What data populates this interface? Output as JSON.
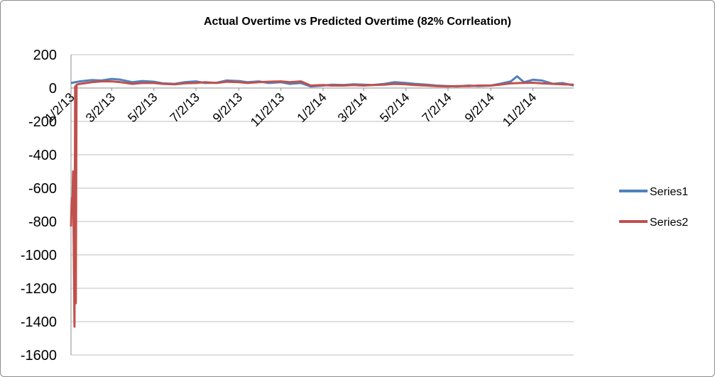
{
  "chart_data": {
    "type": "line",
    "title": "Actual Overtime vs Predicted Overtime (82% Corrleation)",
    "xlabel": "",
    "ylabel": "",
    "ylim": [
      -1600,
      200
    ],
    "yticks": [
      200,
      0,
      -200,
      -400,
      -600,
      -800,
      -1000,
      -1200,
      -1400,
      -1600
    ],
    "xtick_labels": [
      "1/2/13",
      "3/2/13",
      "5/2/13",
      "7/2/13",
      "9/2/13",
      "11/2/13",
      "1/2/14",
      "3/2/14",
      "5/2/14",
      "7/2/14",
      "9/2/14",
      "11/2/14"
    ],
    "x_start": "1/2/13",
    "x_end": "12/31/14",
    "grid": "horizontal",
    "legend_position": "right",
    "series": [
      {
        "name": "Series1",
        "color": "#4f81bd",
        "points": [
          [
            "1/2/13",
            30
          ],
          [
            "1/15/13",
            40
          ],
          [
            "2/1/13",
            48
          ],
          [
            "2/15/13",
            45
          ],
          [
            "3/2/13",
            55
          ],
          [
            "3/15/13",
            50
          ],
          [
            "4/1/13",
            35
          ],
          [
            "4/15/13",
            42
          ],
          [
            "5/2/13",
            38
          ],
          [
            "5/15/13",
            28
          ],
          [
            "6/1/13",
            25
          ],
          [
            "6/15/13",
            35
          ],
          [
            "7/2/13",
            40
          ],
          [
            "7/15/13",
            30
          ],
          [
            "8/1/13",
            32
          ],
          [
            "8/15/13",
            45
          ],
          [
            "9/2/13",
            42
          ],
          [
            "9/15/13",
            35
          ],
          [
            "10/1/13",
            40
          ],
          [
            "10/15/13",
            30
          ],
          [
            "11/2/13",
            35
          ],
          [
            "11/15/13",
            25
          ],
          [
            "12/1/13",
            30
          ],
          [
            "12/15/13",
            10
          ],
          [
            "1/2/14",
            15
          ],
          [
            "1/15/14",
            20
          ],
          [
            "2/1/14",
            18
          ],
          [
            "2/15/14",
            22
          ],
          [
            "3/2/14",
            20
          ],
          [
            "3/15/14",
            18
          ],
          [
            "4/1/14",
            25
          ],
          [
            "4/15/14",
            35
          ],
          [
            "5/2/14",
            30
          ],
          [
            "5/15/14",
            25
          ],
          [
            "6/1/14",
            20
          ],
          [
            "6/15/14",
            15
          ],
          [
            "7/2/14",
            12
          ],
          [
            "7/15/14",
            10
          ],
          [
            "8/1/14",
            15
          ],
          [
            "8/15/14",
            12
          ],
          [
            "9/2/14",
            15
          ],
          [
            "9/15/14",
            25
          ],
          [
            "10/1/14",
            40
          ],
          [
            "10/10/14",
            70
          ],
          [
            "10/20/14",
            35
          ],
          [
            "11/2/14",
            50
          ],
          [
            "11/15/14",
            45
          ],
          [
            "12/1/14",
            25
          ],
          [
            "12/15/14",
            30
          ],
          [
            "12/31/14",
            15
          ]
        ]
      },
      {
        "name": "Series2",
        "color": "#c0504d",
        "points": [
          [
            "1/2/13",
            -830
          ],
          [
            "1/3/13",
            -660
          ],
          [
            "1/4/13",
            -720
          ],
          [
            "1/5/13",
            -500
          ],
          [
            "1/7/13",
            -1430
          ],
          [
            "1/8/13",
            10
          ],
          [
            "1/9/13",
            -1290
          ],
          [
            "1/10/13",
            20
          ],
          [
            "1/15/13",
            25
          ],
          [
            "2/1/13",
            35
          ],
          [
            "2/15/13",
            40
          ],
          [
            "3/2/13",
            40
          ],
          [
            "3/15/13",
            35
          ],
          [
            "4/1/13",
            25
          ],
          [
            "4/15/13",
            30
          ],
          [
            "5/2/13",
            30
          ],
          [
            "5/15/13",
            25
          ],
          [
            "6/1/13",
            22
          ],
          [
            "6/15/13",
            28
          ],
          [
            "7/2/13",
            30
          ],
          [
            "7/15/13",
            35
          ],
          [
            "8/1/13",
            30
          ],
          [
            "8/15/13",
            38
          ],
          [
            "9/2/13",
            35
          ],
          [
            "9/15/13",
            30
          ],
          [
            "10/1/13",
            35
          ],
          [
            "10/15/13",
            38
          ],
          [
            "11/2/13",
            40
          ],
          [
            "11/15/13",
            35
          ],
          [
            "12/1/13",
            40
          ],
          [
            "12/15/13",
            15
          ],
          [
            "1/2/14",
            18
          ],
          [
            "1/15/14",
            15
          ],
          [
            "2/1/14",
            15
          ],
          [
            "2/15/14",
            18
          ],
          [
            "3/2/14",
            15
          ],
          [
            "3/15/14",
            18
          ],
          [
            "4/1/14",
            20
          ],
          [
            "4/15/14",
            25
          ],
          [
            "5/2/14",
            22
          ],
          [
            "5/15/14",
            18
          ],
          [
            "6/1/14",
            15
          ],
          [
            "6/15/14",
            12
          ],
          [
            "7/2/14",
            10
          ],
          [
            "7/15/14",
            12
          ],
          [
            "8/1/14",
            12
          ],
          [
            "8/15/14",
            15
          ],
          [
            "9/2/14",
            15
          ],
          [
            "9/15/14",
            20
          ],
          [
            "10/1/14",
            28
          ],
          [
            "10/15/14",
            30
          ],
          [
            "11/2/14",
            32
          ],
          [
            "11/15/14",
            28
          ],
          [
            "12/1/14",
            25
          ],
          [
            "12/15/14",
            22
          ],
          [
            "12/31/14",
            20
          ]
        ]
      }
    ]
  }
}
